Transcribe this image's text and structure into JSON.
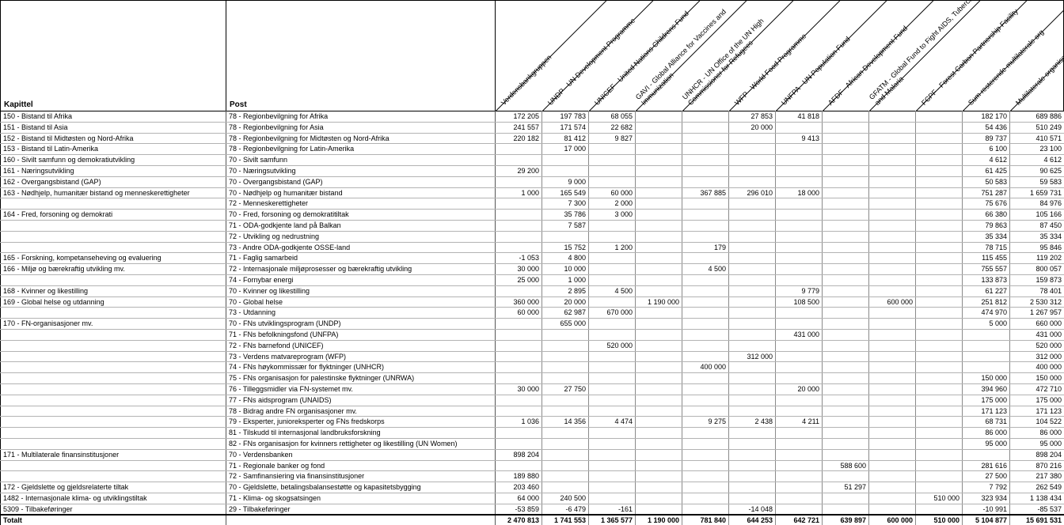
{
  "table": {
    "kapittel_header": "Kapittel",
    "post_header": "Post",
    "org_columns": [
      "Verdensbankgruppen",
      "UNDP - UN Development Programme",
      "UNICEF - United Nations Childrens Fund",
      "GAVI - Global Alliance for Vaccines and Immunization",
      "UNHCR - UN Office of the UN High Commissioner for Refugees",
      "WFP - World Food Programme",
      "UNFPA - UN Population Fund",
      "AFDF - African Development Fund",
      "GFATM - Global Fund to Fight AIDS, Tuberculosis and Malaria",
      "FCPF - Forest Carbon Partnership Facility",
      "Sum resterende multilaterale org",
      "Multilaterale organisasjoner totalt"
    ],
    "rows": [
      {
        "kapittel": "150 - Bistand til Afrika",
        "post": "78 - Regionbevilgning for Afrika",
        "values": [
          "172 205",
          "197 783",
          "68 055",
          "",
          "",
          "27 853",
          "41 818",
          "",
          "",
          "",
          "182 170",
          "689 886"
        ]
      },
      {
        "kapittel": "151 - Bistand til Asia",
        "post": "78 - Regionbevilgning for Asia",
        "values": [
          "241 557",
          "171 574",
          "22 682",
          "",
          "",
          "20 000",
          "",
          "",
          "",
          "",
          "54 436",
          "510 249"
        ]
      },
      {
        "kapittel": "152 - Bistand til Midtøsten og Nord-Afrika",
        "post": "78 - Regionbevilgning for Midtøsten og Nord-Afrika",
        "values": [
          "220 182",
          "81 412",
          "9 827",
          "",
          "",
          "",
          "9 413",
          "",
          "",
          "",
          "89 737",
          "410 571"
        ]
      },
      {
        "kapittel": "153 - Bistand til Latin-Amerika",
        "post": "78 - Regionbevilgning for Latin-Amerika",
        "values": [
          "",
          "17 000",
          "",
          "",
          "",
          "",
          "",
          "",
          "",
          "",
          "6 100",
          "23 100"
        ]
      },
      {
        "kapittel": "160 - Sivilt samfunn og demokratiutvikling",
        "post": "70 - Sivilt samfunn",
        "values": [
          "",
          "",
          "",
          "",
          "",
          "",
          "",
          "",
          "",
          "",
          "4 612",
          "4 612"
        ]
      },
      {
        "kapittel": "161 - Næringsutvikling",
        "post": "70 - Næringsutvikling",
        "values": [
          "29 200",
          "",
          "",
          "",
          "",
          "",
          "",
          "",
          "",
          "",
          "61 425",
          "90 625"
        ]
      },
      {
        "kapittel": "162 - Overgangsbistand (GAP)",
        "post": "70 - Overgangsbistand (GAP)",
        "values": [
          "",
          "9 000",
          "",
          "",
          "",
          "",
          "",
          "",
          "",
          "",
          "50 583",
          "59 583"
        ]
      },
      {
        "kapittel": "163 - Nødhjelp, humanitær bistand og menneskerettigheter",
        "post": "70 - Nødhjelp og humanitær bistand",
        "values": [
          "1 000",
          "165 549",
          "60 000",
          "",
          "367 885",
          "296 010",
          "18 000",
          "",
          "",
          "",
          "751 287",
          "1 659 731"
        ]
      },
      {
        "kapittel": "",
        "post": "72 - Menneskerettigheter",
        "values": [
          "",
          "7 300",
          "2 000",
          "",
          "",
          "",
          "",
          "",
          "",
          "",
          "75 676",
          "84 976"
        ]
      },
      {
        "kapittel": "164 - Fred, forsoning og demokrati",
        "post": "70 - Fred, forsoning og demokratitiltak",
        "values": [
          "",
          "35 786",
          "3 000",
          "",
          "",
          "",
          "",
          "",
          "",
          "",
          "66 380",
          "105 166"
        ]
      },
      {
        "kapittel": "",
        "post": "71 - ODA-godkjente land på Balkan",
        "values": [
          "",
          "7 587",
          "",
          "",
          "",
          "",
          "",
          "",
          "",
          "",
          "79 863",
          "87 450"
        ]
      },
      {
        "kapittel": "",
        "post": "72 - Utvikling og nedrustning",
        "values": [
          "",
          "",
          "",
          "",
          "",
          "",
          "",
          "",
          "",
          "",
          "35 334",
          "35 334"
        ]
      },
      {
        "kapittel": "",
        "post": "73 - Andre ODA-godkjente OSSE-land",
        "values": [
          "",
          "15 752",
          "1 200",
          "",
          "179",
          "",
          "",
          "",
          "",
          "",
          "78 715",
          "95 846"
        ]
      },
      {
        "kapittel": "165 - Forskning, kompetanseheving og evaluering",
        "post": "71 - Faglig samarbeid",
        "values": [
          "-1 053",
          "4 800",
          "",
          "",
          "",
          "",
          "",
          "",
          "",
          "",
          "115 455",
          "119 202"
        ]
      },
      {
        "kapittel": "166 - Miljø og bærekraftig utvikling mv.",
        "post": "72 - Internasjonale miljøprosesser og bærekraftig utvikling",
        "values": [
          "30 000",
          "10 000",
          "",
          "",
          "4 500",
          "",
          "",
          "",
          "",
          "",
          "755 557",
          "800 057"
        ]
      },
      {
        "kapittel": "",
        "post": "74 - Fornybar energi",
        "values": [
          "25 000",
          "1 000",
          "",
          "",
          "",
          "",
          "",
          "",
          "",
          "",
          "133 873",
          "159 873"
        ]
      },
      {
        "kapittel": "168 - Kvinner og likestilling",
        "post": "70 - Kvinner og likestilling",
        "values": [
          "",
          "2 895",
          "4 500",
          "",
          "",
          "",
          "9 779",
          "",
          "",
          "",
          "61 227",
          "78 401"
        ]
      },
      {
        "kapittel": "169 - Global helse og utdanning",
        "post": "70 - Global helse",
        "values": [
          "360 000",
          "20 000",
          "",
          "1 190 000",
          "",
          "",
          "108 500",
          "",
          "600 000",
          "",
          "251 812",
          "2 530 312"
        ]
      },
      {
        "kapittel": "",
        "post": "73 - Utdanning",
        "values": [
          "60 000",
          "62 987",
          "670 000",
          "",
          "",
          "",
          "",
          "",
          "",
          "",
          "474 970",
          "1 267 957"
        ]
      },
      {
        "kapittel": "170 - FN-organisasjoner mv.",
        "post": "70 - FNs utviklingsprogram (UNDP)",
        "values": [
          "",
          "655 000",
          "",
          "",
          "",
          "",
          "",
          "",
          "",
          "",
          "5 000",
          "660 000"
        ]
      },
      {
        "kapittel": "",
        "post": "71 - FNs befolkningsfond (UNFPA)",
        "values": [
          "",
          "",
          "",
          "",
          "",
          "",
          "431 000",
          "",
          "",
          "",
          "",
          "431 000"
        ]
      },
      {
        "kapittel": "",
        "post": "72 - FNs barnefond (UNICEF)",
        "values": [
          "",
          "",
          "520 000",
          "",
          "",
          "",
          "",
          "",
          "",
          "",
          "",
          "520 000"
        ]
      },
      {
        "kapittel": "",
        "post": "73 - Verdens matvareprogram (WFP)",
        "values": [
          "",
          "",
          "",
          "",
          "",
          "312 000",
          "",
          "",
          "",
          "",
          "",
          "312 000"
        ]
      },
      {
        "kapittel": "",
        "post": "74 - FNs høykommissær for flyktninger (UNHCR)",
        "values": [
          "",
          "",
          "",
          "",
          "400 000",
          "",
          "",
          "",
          "",
          "",
          "",
          "400 000"
        ]
      },
      {
        "kapittel": "",
        "post": "75 - FNs organisasjon for palestinske flyktninger (UNRWA)",
        "values": [
          "",
          "",
          "",
          "",
          "",
          "",
          "",
          "",
          "",
          "",
          "150 000",
          "150 000"
        ]
      },
      {
        "kapittel": "",
        "post": "76 - Tilleggsmidler via FN-systemet mv.",
        "values": [
          "30 000",
          "27 750",
          "",
          "",
          "",
          "",
          "20 000",
          "",
          "",
          "",
          "394 960",
          "472 710"
        ]
      },
      {
        "kapittel": "",
        "post": "77 - FNs aidsprogram (UNAIDS)",
        "values": [
          "",
          "",
          "",
          "",
          "",
          "",
          "",
          "",
          "",
          "",
          "175 000",
          "175 000"
        ]
      },
      {
        "kapittel": "",
        "post": "78 - Bidrag andre FN organisasjoner mv.",
        "values": [
          "",
          "",
          "",
          "",
          "",
          "",
          "",
          "",
          "",
          "",
          "171 123",
          "171 123"
        ]
      },
      {
        "kapittel": "",
        "post": "79 - Eksperter, junioreksperter og FNs fredskorps",
        "values": [
          "1 036",
          "14 356",
          "4 474",
          "",
          "9 275",
          "2 438",
          "4 211",
          "",
          "",
          "",
          "68 731",
          "104 522"
        ]
      },
      {
        "kapittel": "",
        "post": "81 - Tilskudd til internasjonal landbruksforskning",
        "values": [
          "",
          "",
          "",
          "",
          "",
          "",
          "",
          "",
          "",
          "",
          "86 000",
          "86 000"
        ]
      },
      {
        "kapittel": "",
        "post": "82 - FNs organisasjon for kvinners rettigheter og likestilling (UN Women)",
        "values": [
          "",
          "",
          "",
          "",
          "",
          "",
          "",
          "",
          "",
          "",
          "95 000",
          "95 000"
        ]
      },
      {
        "kapittel": "171 - Multilaterale finansinstitusjoner",
        "post": "70 - Verdensbanken",
        "values": [
          "898 204",
          "",
          "",
          "",
          "",
          "",
          "",
          "",
          "",
          "",
          "",
          "898 204"
        ]
      },
      {
        "kapittel": "",
        "post": "71 - Regionale banker og fond",
        "values": [
          "",
          "",
          "",
          "",
          "",
          "",
          "",
          "588 600",
          "",
          "",
          "281 616",
          "870 216"
        ]
      },
      {
        "kapittel": "",
        "post": "72 - Samfinansiering via finansinstitusjoner",
        "values": [
          "189 880",
          "",
          "",
          "",
          "",
          "",
          "",
          "",
          "",
          "",
          "27 500",
          "217 380"
        ]
      },
      {
        "kapittel": "172 - Gjeldslette og gjeldsrelaterte tiltak",
        "post": "70 - Gjeldslette, betalingsbalansestøtte og kapasitetsbygging",
        "values": [
          "203 460",
          "",
          "",
          "",
          "",
          "",
          "",
          "51 297",
          "",
          "",
          "7 792",
          "262 549"
        ]
      },
      {
        "kapittel": "1482 - Internasjonale klima- og utviklingstiltak",
        "post": "71 - Klima- og skogsatsingen",
        "values": [
          "64 000",
          "240 500",
          "",
          "",
          "",
          "",
          "",
          "",
          "",
          "510 000",
          "323 934",
          "1 138 434"
        ]
      },
      {
        "kapittel": "5309 - Tilbakeføringer",
        "post": "29 - Tilbakeføringer",
        "values": [
          "-53 859",
          "-6 479",
          "-161",
          "",
          "",
          "-14 048",
          "",
          "",
          "",
          "",
          "-10 991",
          "-85 537"
        ]
      }
    ],
    "total_row": {
      "label": "Totalt",
      "values": [
        "2 470 813",
        "1 741 553",
        "1 365 577",
        "1 190 000",
        "781 840",
        "644 253",
        "642 721",
        "639 897",
        "600 000",
        "510 000",
        "5 104 877",
        "15 691 531"
      ]
    }
  }
}
